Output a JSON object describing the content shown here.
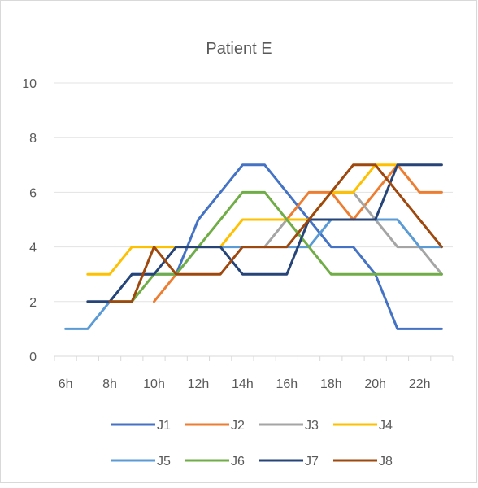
{
  "chart_data": {
    "type": "line",
    "title": "Patient E",
    "xlabel": "",
    "ylabel": "",
    "x": [
      "6h",
      "7h",
      "8h",
      "9h",
      "10h",
      "11h",
      "12h",
      "13h",
      "14h",
      "15h",
      "16h",
      "17h",
      "18h",
      "19h",
      "20h",
      "21h",
      "22h",
      "23h"
    ],
    "x_tick_labels": [
      "6h",
      "8h",
      "10h",
      "12h",
      "14h",
      "16h",
      "18h",
      "20h",
      "22h"
    ],
    "ylim": [
      0,
      10
    ],
    "y_ticks": [
      0,
      2,
      4,
      6,
      8,
      10
    ],
    "grid": "horizontal",
    "legend_position": "bottom",
    "series": [
      {
        "name": "J1",
        "color": "#4472c4",
        "values": [
          null,
          null,
          null,
          null,
          null,
          3,
          5,
          6,
          7,
          7,
          6,
          5,
          4,
          4,
          3,
          1,
          1,
          1
        ]
      },
      {
        "name": "J2",
        "color": "#ed7d31",
        "values": [
          null,
          null,
          null,
          null,
          2,
          3,
          null,
          null,
          null,
          null,
          5,
          6,
          6,
          5,
          6,
          7,
          6,
          6
        ]
      },
      {
        "name": "J3",
        "color": "#a5a5a5",
        "values": [
          null,
          null,
          null,
          null,
          null,
          null,
          null,
          null,
          null,
          4,
          5,
          5,
          6,
          6,
          5,
          4,
          4,
          3
        ]
      },
      {
        "name": "J4",
        "color": "#ffc000",
        "values": [
          null,
          3,
          3,
          4,
          4,
          4,
          4,
          4,
          5,
          5,
          5,
          5,
          6,
          6,
          7,
          7,
          null,
          null
        ]
      },
      {
        "name": "J5",
        "color": "#5b9bd5",
        "values": [
          1,
          1,
          2,
          3,
          3,
          3,
          4,
          4,
          4,
          4,
          4,
          4,
          5,
          5,
          5,
          5,
          4,
          4
        ]
      },
      {
        "name": "J6",
        "color": "#70ad47",
        "values": [
          null,
          null,
          2,
          2,
          3,
          3,
          4,
          5,
          6,
          6,
          5,
          4,
          3,
          3,
          3,
          3,
          3,
          3
        ]
      },
      {
        "name": "J7",
        "color": "#264478",
        "values": [
          null,
          2,
          2,
          3,
          3,
          4,
          4,
          4,
          3,
          3,
          3,
          5,
          5,
          5,
          5,
          7,
          7,
          7
        ]
      },
      {
        "name": "J8",
        "color": "#9e480e",
        "values": [
          null,
          null,
          2,
          2,
          4,
          3,
          3,
          3,
          4,
          4,
          4,
          5,
          6,
          7,
          7,
          6,
          5,
          4
        ]
      }
    ]
  }
}
